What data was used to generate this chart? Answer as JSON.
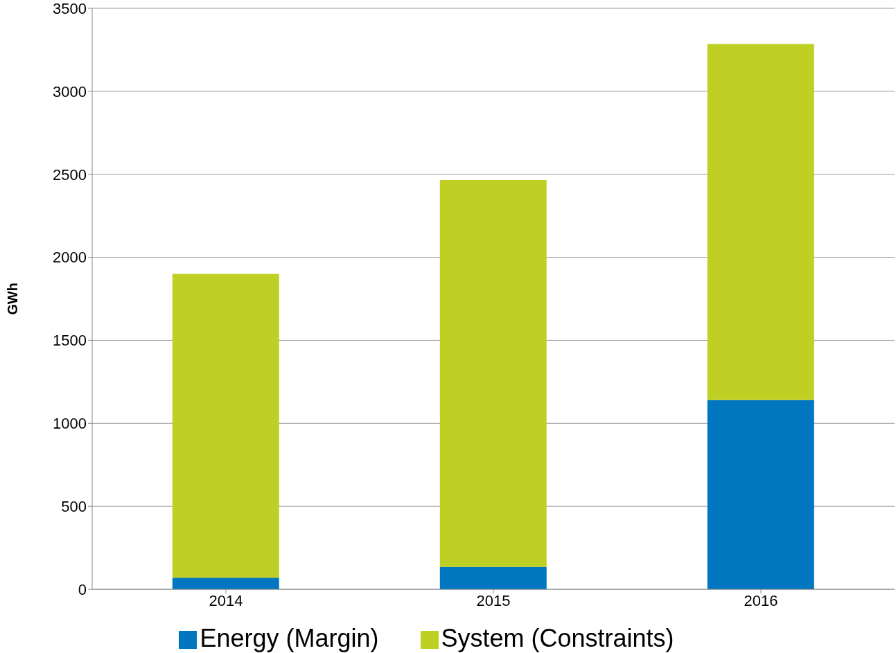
{
  "chart_data": {
    "type": "bar",
    "stacked": true,
    "ylabel": "GWh",
    "categories": [
      "2014",
      "2015",
      "2016"
    ],
    "series": [
      {
        "name": "Energy (Margin)",
        "color": "#0077c0",
        "values": [
          70,
          135,
          1140
        ]
      },
      {
        "name": "System (Constraints)",
        "color": "#c0cf24",
        "values": [
          1830,
          2330,
          2145
        ]
      }
    ],
    "ylim": [
      0,
      3500
    ],
    "yticks": [
      0,
      500,
      1000,
      1500,
      2000,
      2500,
      3000,
      3500
    ],
    "grid": "y",
    "legend": "bottom"
  }
}
